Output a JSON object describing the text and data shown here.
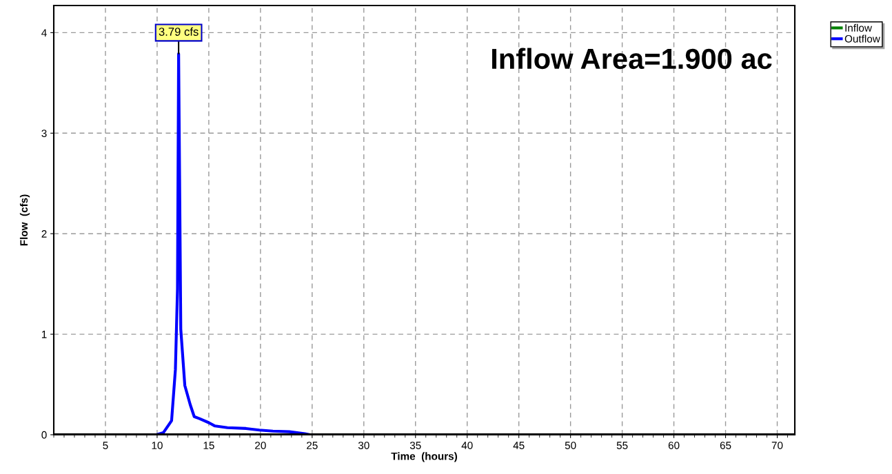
{
  "chart_data": {
    "type": "line",
    "xlabel": "Time  (hours)",
    "ylabel": "Flow  (cfs)",
    "xlim": [
      0,
      71.7
    ],
    "ylim": [
      0,
      4.27
    ],
    "xticks": [
      5,
      10,
      15,
      20,
      25,
      30,
      35,
      40,
      45,
      50,
      55,
      60,
      65,
      70
    ],
    "yticks": [
      0,
      1,
      2,
      3,
      4
    ],
    "grid": true,
    "legend": "top right",
    "line_style": "solid",
    "marker": "none",
    "annotations": [
      {
        "text": "3.79 cfs",
        "x": 12.08,
        "y": 3.79
      },
      "Inflow Area=1.900 ac"
    ],
    "series": [
      {
        "name": "Inflow",
        "color": "#008000"
      },
      {
        "name": "Outflow",
        "color": "#0000ff",
        "x": [
          0,
          9.93,
          10.6,
          11.4,
          11.77,
          11.97,
          12.08,
          12.29,
          12.68,
          13.2,
          13.59,
          14.1,
          15.0,
          15.6,
          16.8,
          18.6,
          19.9,
          21.2,
          22.8,
          24.3,
          24.8,
          71.7
        ],
        "values": [
          0,
          0,
          0.02,
          0.14,
          0.65,
          1.45,
          3.79,
          1.05,
          0.49,
          0.3,
          0.18,
          0.16,
          0.12,
          0.087,
          0.07,
          0.062,
          0.046,
          0.036,
          0.03,
          0.01,
          0,
          0
        ]
      }
    ]
  }
}
